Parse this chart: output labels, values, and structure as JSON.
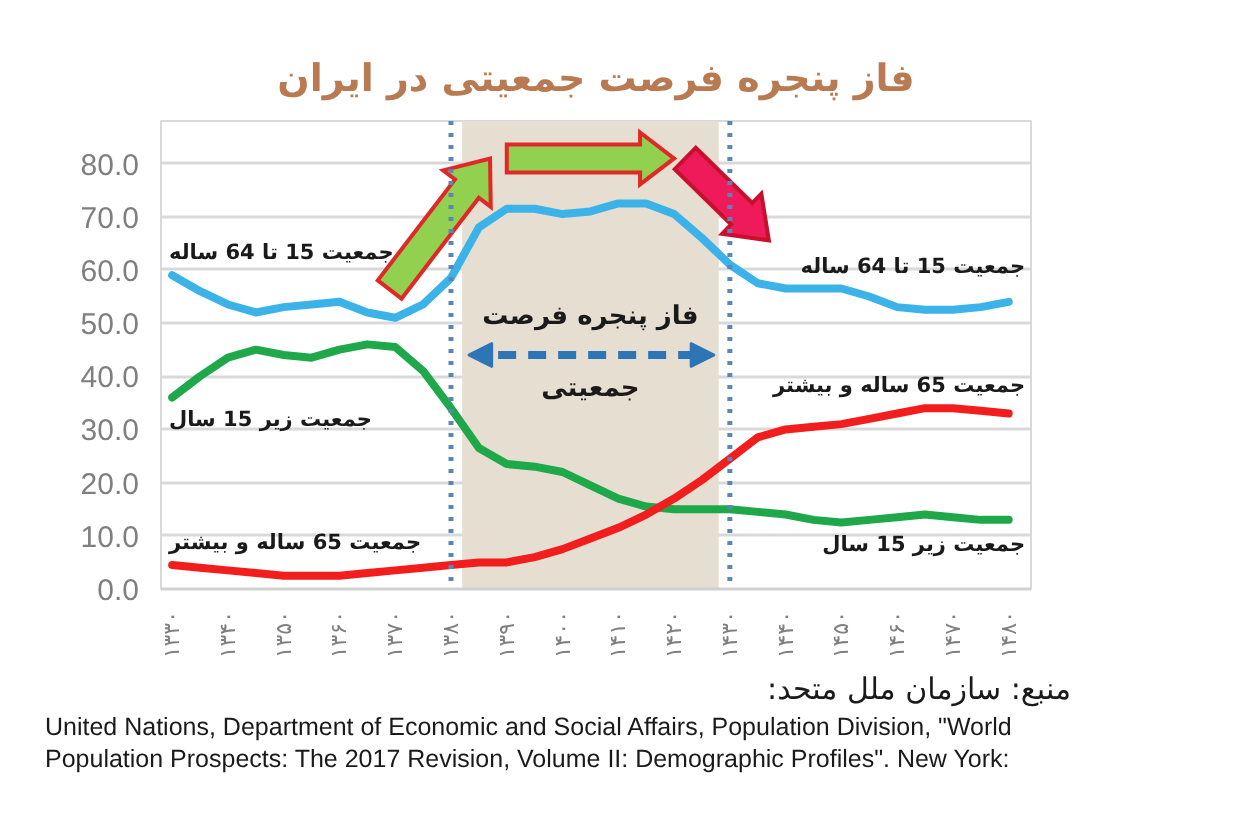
{
  "chart_data": {
    "type": "line",
    "title": "فاز پنجره فرصت جمعیتی در ایران",
    "x": [
      1330,
      1335,
      1340,
      1345,
      1350,
      1355,
      1360,
      1365,
      1370,
      1375,
      1380,
      1385,
      1390,
      1395,
      1400,
      1405,
      1410,
      1415,
      1420,
      1425,
      1430,
      1435,
      1440,
      1445,
      1450,
      1455,
      1460,
      1465,
      1470,
      1475,
      1480
    ],
    "series": [
      {
        "name": "جمعیت 15 تا 64 ساله",
        "color": "#3bb3e8",
        "values": [
          59,
          56,
          53.5,
          52,
          53,
          53.5,
          54,
          52,
          51,
          53.5,
          58.5,
          68,
          71.5,
          71.5,
          70.5,
          71,
          72.5,
          72.5,
          70.5,
          66,
          61,
          57.5,
          56.5,
          56.5,
          56.5,
          55,
          53,
          52.5,
          52.5,
          53,
          54
        ]
      },
      {
        "name": "جمعیت زیر 15 سال",
        "color": "#1fa84a",
        "values": [
          36,
          40,
          43.5,
          45,
          44,
          43.5,
          45,
          46,
          45.5,
          41,
          34,
          26.5,
          23.5,
          23,
          22,
          19.5,
          17,
          15.5,
          15,
          15,
          15,
          14.5,
          14,
          13,
          12.5,
          13,
          13.5,
          14,
          13.5,
          13,
          13
        ]
      },
      {
        "name": "جمعیت 65 ساله و بیشتر",
        "color": "#f21d1d",
        "values": [
          4.5,
          4,
          3.5,
          3,
          2.5,
          2.5,
          2.5,
          3,
          3.5,
          4,
          4.5,
          5,
          5,
          6,
          7.5,
          9.5,
          11.5,
          14,
          17,
          20.5,
          24.5,
          28.5,
          30,
          30.5,
          31,
          32,
          33,
          34,
          34,
          33.5,
          33
        ]
      }
    ],
    "xlim": [
      1328,
      1484
    ],
    "ylim": [
      0,
      88
    ],
    "xticks": [
      {
        "value": 1330,
        "label": "۱۳۳۰"
      },
      {
        "value": 1340,
        "label": "۱۳۴۰"
      },
      {
        "value": 1350,
        "label": "۱۳۵۰"
      },
      {
        "value": 1360,
        "label": "۱۳۶۰"
      },
      {
        "value": 1370,
        "label": "۱۳۷۰"
      },
      {
        "value": 1380,
        "label": "۱۳۸۰"
      },
      {
        "value": 1390,
        "label": "۱۳۹۰"
      },
      {
        "value": 1400,
        "label": "۱۴۰۰"
      },
      {
        "value": 1410,
        "label": "۱۴۱۰"
      },
      {
        "value": 1420,
        "label": "۱۴۲۰"
      },
      {
        "value": 1430,
        "label": "۱۴۳۰"
      },
      {
        "value": 1440,
        "label": "۱۴۴۰"
      },
      {
        "value": 1450,
        "label": "۱۴۵۰"
      },
      {
        "value": 1460,
        "label": "۱۴۶۰"
      },
      {
        "value": 1470,
        "label": "۱۴۷۰"
      },
      {
        "value": 1480,
        "label": "۱۴۸۰"
      }
    ],
    "yticks": [
      {
        "value": 0,
        "label": "0.0"
      },
      {
        "value": 10,
        "label": "10.0"
      },
      {
        "value": 20,
        "label": "20.0"
      },
      {
        "value": 30,
        "label": "30.0"
      },
      {
        "value": 40,
        "label": "40.0"
      },
      {
        "value": 50,
        "label": "50.0"
      },
      {
        "value": 60,
        "label": "60.0"
      },
      {
        "value": 70,
        "label": "70.0"
      },
      {
        "value": 80,
        "label": "80.0"
      }
    ],
    "grid": "y",
    "line_style": "solid",
    "ref_lines": [
      {
        "axis": "x",
        "value": 1380,
        "color": "#5b87b8",
        "line_style": "dotted"
      },
      {
        "axis": "x",
        "value": 1430,
        "color": "#5b87b8",
        "line_style": "dotted"
      }
    ],
    "bands": [
      {
        "axis": "x",
        "from": 1382,
        "to": 1428,
        "label": "فاز پنجره فرصت جمعیتی",
        "color": "#e6dfd1"
      }
    ],
    "annotations": [
      "منبع: سازمان ملل متحد:",
      "United Nations, Department of Economic and Social Affairs, Population Division, \"World Population Prospects: The 2017 Revision, Volume II: Demographic Profiles\". New York:"
    ]
  }
}
